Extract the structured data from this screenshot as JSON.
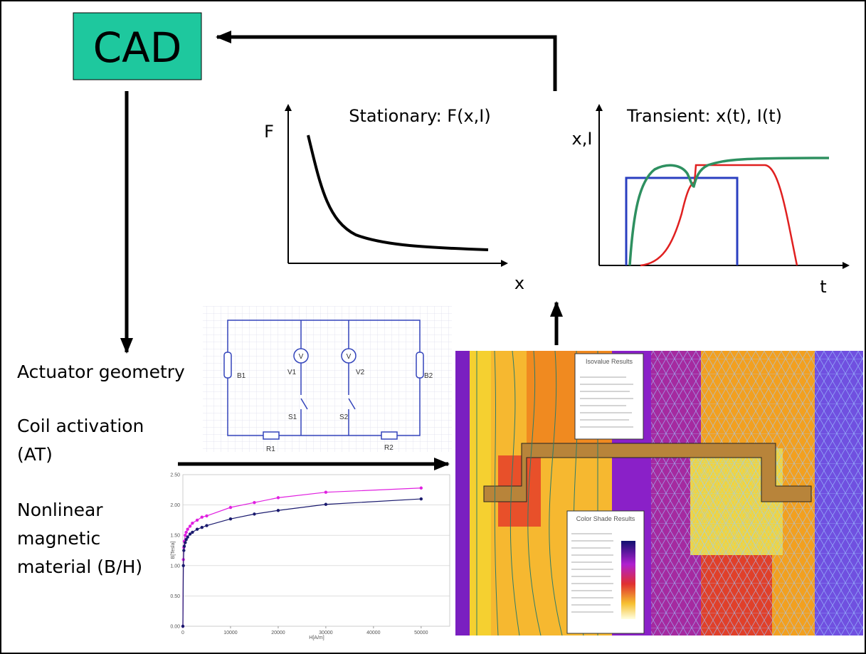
{
  "cad": {
    "label": "CAD"
  },
  "stationary": {
    "title": "Stationary: F(x,I)",
    "y_label": "F",
    "x_label": "x"
  },
  "transient": {
    "title": "Transient: x(t), I(t)",
    "y_label": "x,I",
    "x_label": "t"
  },
  "inputs": {
    "geometry": "Actuator geometry",
    "coil": [
      "Coil activation",
      "(AT)"
    ],
    "material": [
      "Nonlinear",
      "magnetic",
      "material (B/H)"
    ]
  },
  "circuit": {
    "labels": [
      "B1",
      "V1",
      "V2",
      "B2",
      "S1",
      "S2",
      "R1",
      "R2"
    ],
    "meter": "V"
  },
  "fem": {
    "isovalue_title": "Isovalue Results",
    "shade_title": "Color Shade Results"
  },
  "chart_data": {
    "type": "line",
    "x_label": "H[A/m]",
    "y_label": "B[Tesla]",
    "x": [
      0,
      100,
      200,
      300,
      500,
      700,
      1000,
      1500,
      2000,
      3000,
      4000,
      5000,
      10000,
      15000,
      20000,
      30000,
      50000
    ],
    "series": [
      {
        "color": "#e020e0",
        "values": [
          0,
          1.1,
          1.3,
          1.4,
          1.5,
          1.55,
          1.6,
          1.65,
          1.7,
          1.75,
          1.8,
          1.82,
          1.96,
          2.04,
          2.12,
          2.21,
          2.28
        ]
      },
      {
        "color": "#1a1a6e",
        "values": [
          0,
          1.0,
          1.25,
          1.32,
          1.38,
          1.43,
          1.47,
          1.52,
          1.55,
          1.6,
          1.63,
          1.66,
          1.77,
          1.85,
          1.91,
          2.01,
          2.1
        ]
      }
    ],
    "xlim": [
      0,
      56000
    ],
    "ylim": [
      0,
      2.5
    ],
    "xticks": [
      0,
      10000,
      20000,
      30000,
      40000,
      50000
    ],
    "yticks": [
      {
        "value": 0,
        "label": "0.00"
      },
      {
        "value": 0.5,
        "label": "0.50"
      },
      {
        "value": 1,
        "label": "1.00"
      },
      {
        "value": 1.5,
        "label": "1.50"
      },
      {
        "value": 2,
        "label": "2.00"
      },
      {
        "value": 2.5,
        "label": "2.50"
      }
    ],
    "grid": true
  }
}
